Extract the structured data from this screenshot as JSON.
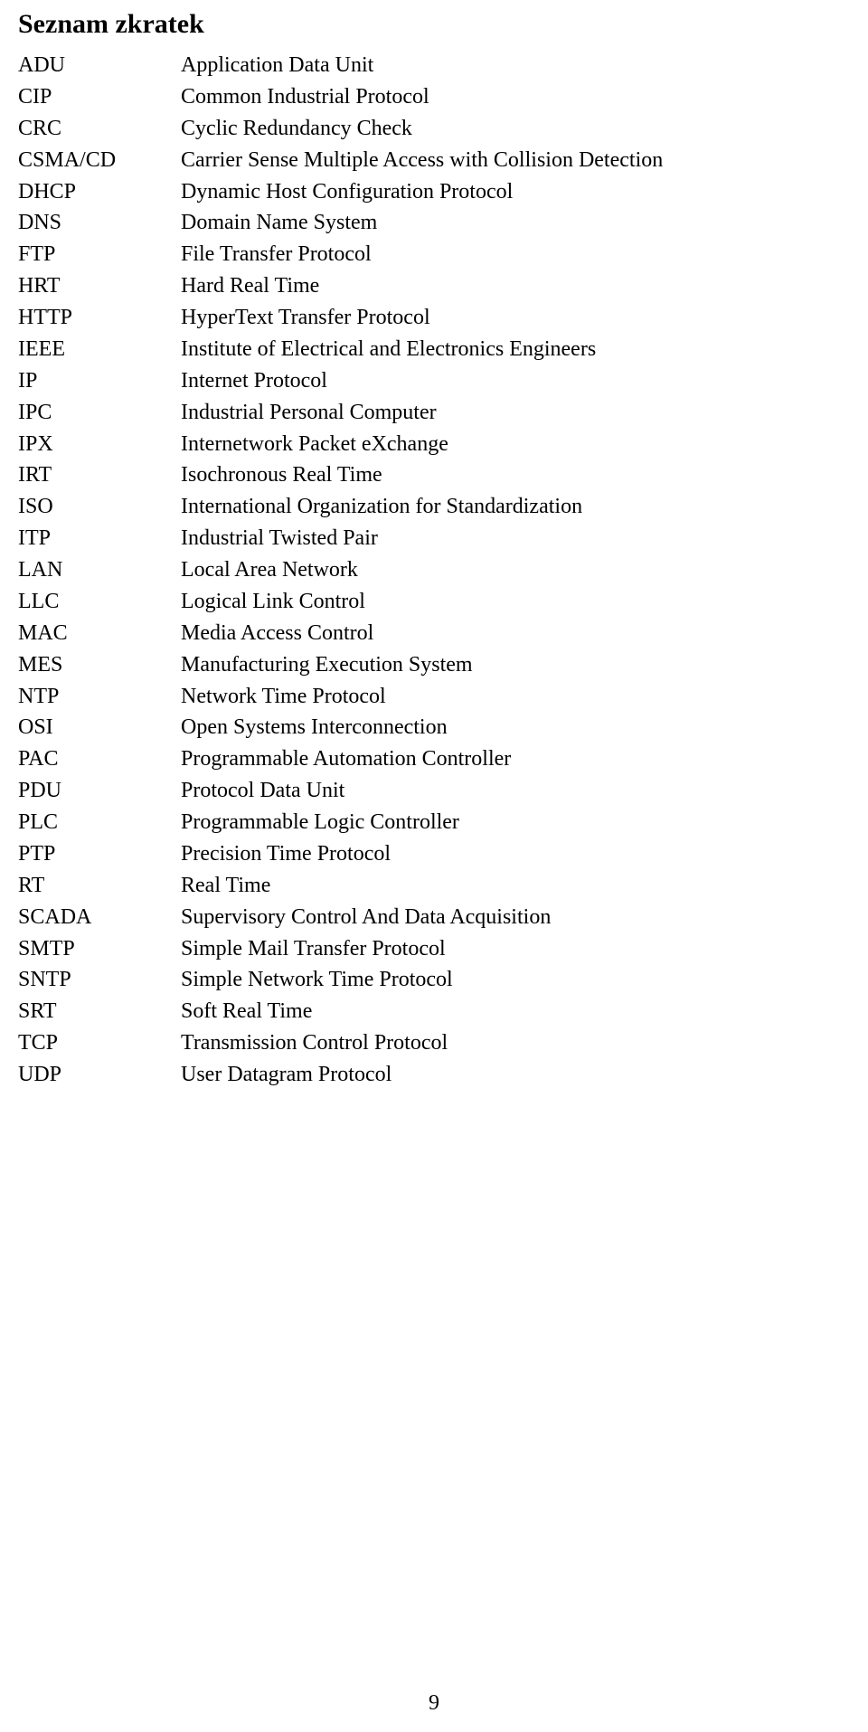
{
  "title": "Seznam zkratek",
  "pageNumber": "9",
  "entries": [
    {
      "abbr": "ADU",
      "desc": "Application Data Unit"
    },
    {
      "abbr": "CIP",
      "desc": "Common Industrial Protocol"
    },
    {
      "abbr": "CRC",
      "desc": "Cyclic Redundancy Check"
    },
    {
      "abbr": "CSMA/CD",
      "desc": "Carrier Sense Multiple Access with Collision Detection"
    },
    {
      "abbr": "DHCP",
      "desc": "Dynamic Host Configuration Protocol"
    },
    {
      "abbr": "DNS",
      "desc": "Domain Name System"
    },
    {
      "abbr": "FTP",
      "desc": "File Transfer Protocol"
    },
    {
      "abbr": "HRT",
      "desc": "Hard Real Time"
    },
    {
      "abbr": "HTTP",
      "desc": "HyperText Transfer Protocol"
    },
    {
      "abbr": "IEEE",
      "desc": "Institute of Electrical and Electronics Engineers"
    },
    {
      "abbr": "IP",
      "desc": "Internet Protocol"
    },
    {
      "abbr": "IPC",
      "desc": "Industrial Personal Computer"
    },
    {
      "abbr": "IPX",
      "desc": "Internetwork Packet eXchange"
    },
    {
      "abbr": "IRT",
      "desc": "Isochronous Real Time"
    },
    {
      "abbr": "ISO",
      "desc": "International Organization for Standardization"
    },
    {
      "abbr": "ITP",
      "desc": "Industrial Twisted Pair"
    },
    {
      "abbr": "LAN",
      "desc": "Local Area Network"
    },
    {
      "abbr": "LLC",
      "desc": "Logical Link Control"
    },
    {
      "abbr": "MAC",
      "desc": "Media Access Control"
    },
    {
      "abbr": "MES",
      "desc": "Manufacturing Execution System"
    },
    {
      "abbr": "NTP",
      "desc": "Network Time Protocol"
    },
    {
      "abbr": "OSI",
      "desc": "Open Systems Interconnection"
    },
    {
      "abbr": "PAC",
      "desc": "Programmable Automation Controller"
    },
    {
      "abbr": "PDU",
      "desc": "Protocol Data Unit"
    },
    {
      "abbr": "PLC",
      "desc": "Programmable Logic Controller"
    },
    {
      "abbr": "PTP",
      "desc": "Precision Time Protocol"
    },
    {
      "abbr": "RT",
      "desc": "Real Time"
    },
    {
      "abbr": "SCADA",
      "desc": "Supervisory Control And Data Acquisition"
    },
    {
      "abbr": "SMTP",
      "desc": "Simple Mail Transfer Protocol"
    },
    {
      "abbr": "SNTP",
      "desc": "Simple Network Time Protocol"
    },
    {
      "abbr": "SRT",
      "desc": "Soft Real Time"
    },
    {
      "abbr": "TCP",
      "desc": "Transmission Control Protocol"
    },
    {
      "abbr": "UDP",
      "desc": "User Datagram Protocol"
    }
  ],
  "styling": {
    "font_family": "Times New Roman",
    "title_fontsize": 30,
    "title_fontweight": "bold",
    "body_fontsize": 24,
    "text_color": "#000000",
    "background_color": "#ffffff",
    "abbr_column_width": 180,
    "line_height": 1.37
  }
}
